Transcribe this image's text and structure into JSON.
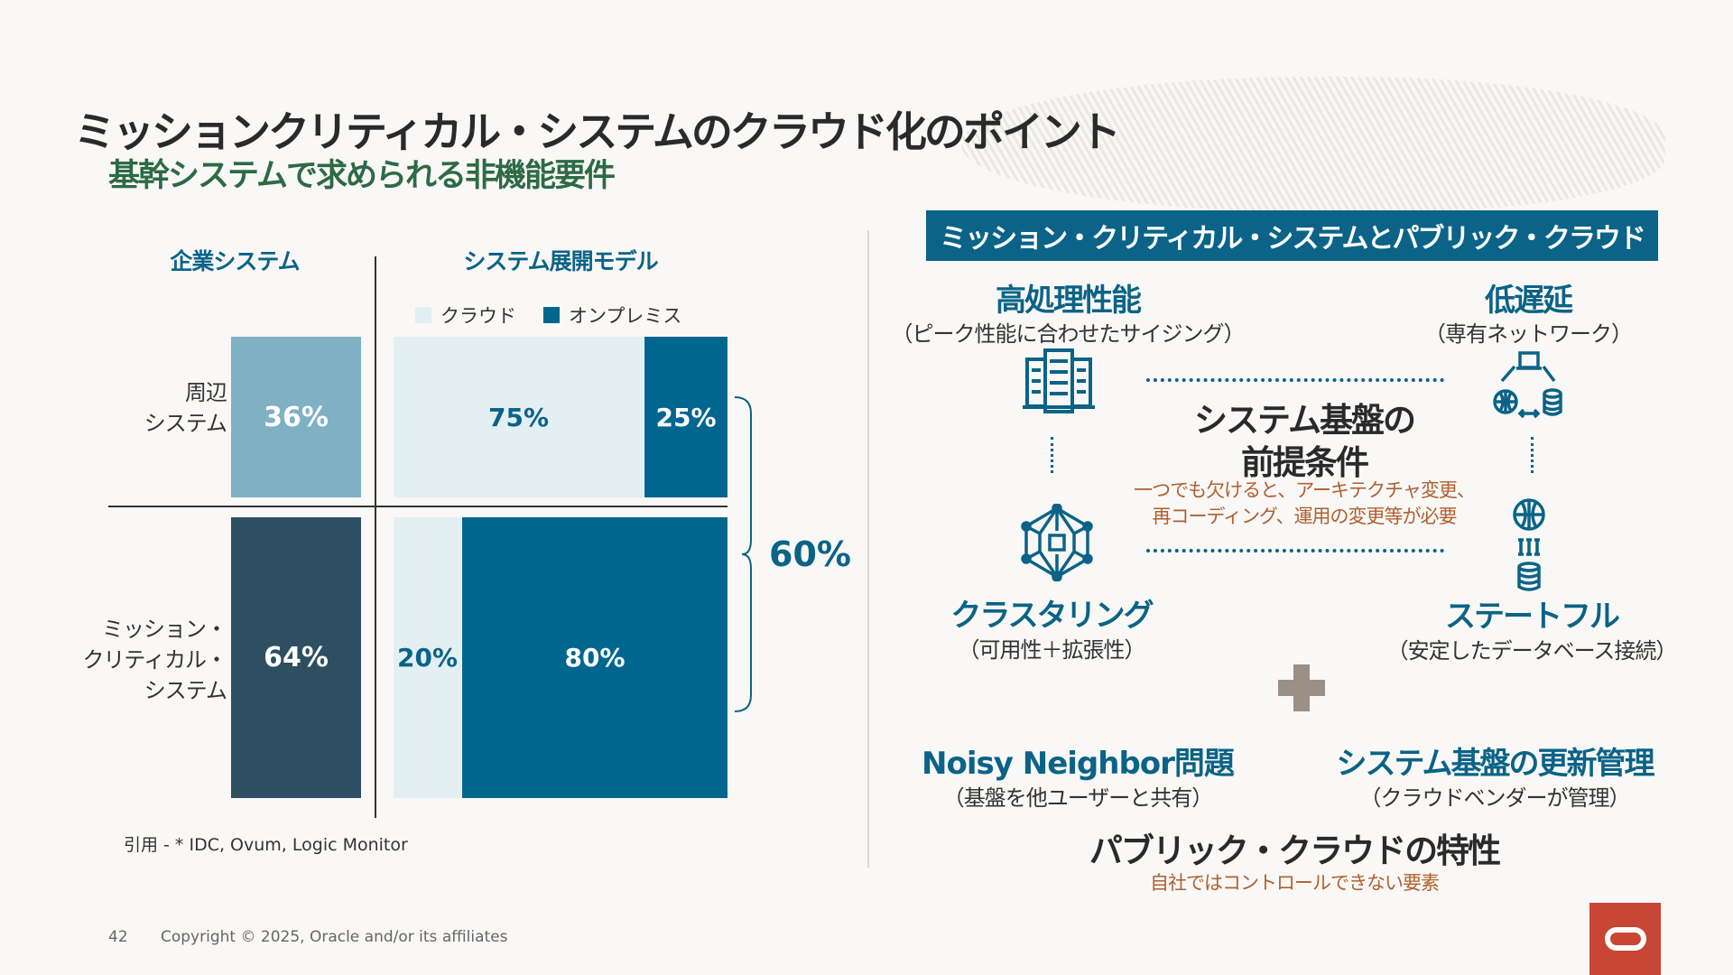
{
  "title": "ミッションクリティカル・システムのクラウド化のポイント",
  "subtitle": "基幹システムで求められる非機能要件",
  "left": {
    "header_enterprise": "企業システム",
    "header_model": "システム展開モデル",
    "legend": [
      {
        "label": "クラウド",
        "color": "#e3eff3"
      },
      {
        "label": "オンプレミス",
        "color": "#006690"
      }
    ],
    "rows": [
      {
        "label_lines": [
          "周辺",
          "システム"
        ],
        "share": "36%",
        "cloud": "75%",
        "onprem": "25%"
      },
      {
        "label_lines": [
          "ミッション・",
          "クリティカル・",
          "システム"
        ],
        "share": "64%",
        "cloud": "20%",
        "onprem": "80%"
      }
    ],
    "bracket_total": "60%",
    "citation": "引用 - * IDC, Ovum, Logic Monitor"
  },
  "right": {
    "banner": "ミッション・クリティカル・システムとパブリック・クラウド",
    "high_perf": {
      "title": "高処理性能",
      "sub": "（ピーク性能に合わせたサイジング）"
    },
    "low_latency": {
      "title": "低遅延",
      "sub": "（専有ネットワーク）"
    },
    "clustering": {
      "title": "クラスタリング",
      "sub": "（可用性＋拡張性）"
    },
    "stateful": {
      "title": "ステートフル",
      "sub": "（安定したデータベース接続）"
    },
    "center": {
      "line1": "システム基盤の",
      "line2": "前提条件",
      "note1": "一つでも欠けると、アーキテクチャ変更、",
      "note2": "再コーディング、運用の変更等が必要"
    },
    "noisy": {
      "title": "Noisy Neighbor問題",
      "sub": "（基盤を他ユーザーと共有）"
    },
    "update": {
      "title": "システム基盤の更新管理",
      "sub": "（クラウドベンダーが管理）"
    },
    "public": {
      "title": "パブリック・クラウドの特性",
      "sub": "自社ではコントロールできない要素"
    }
  },
  "footer": {
    "page": "42",
    "copyright": "Copyright © 2025, Oracle and/or its affiliates"
  },
  "colors": {
    "teal": "#0b6387",
    "green": "#2d6a45",
    "orange": "#b0602f",
    "oracle_red": "#c74634"
  }
}
